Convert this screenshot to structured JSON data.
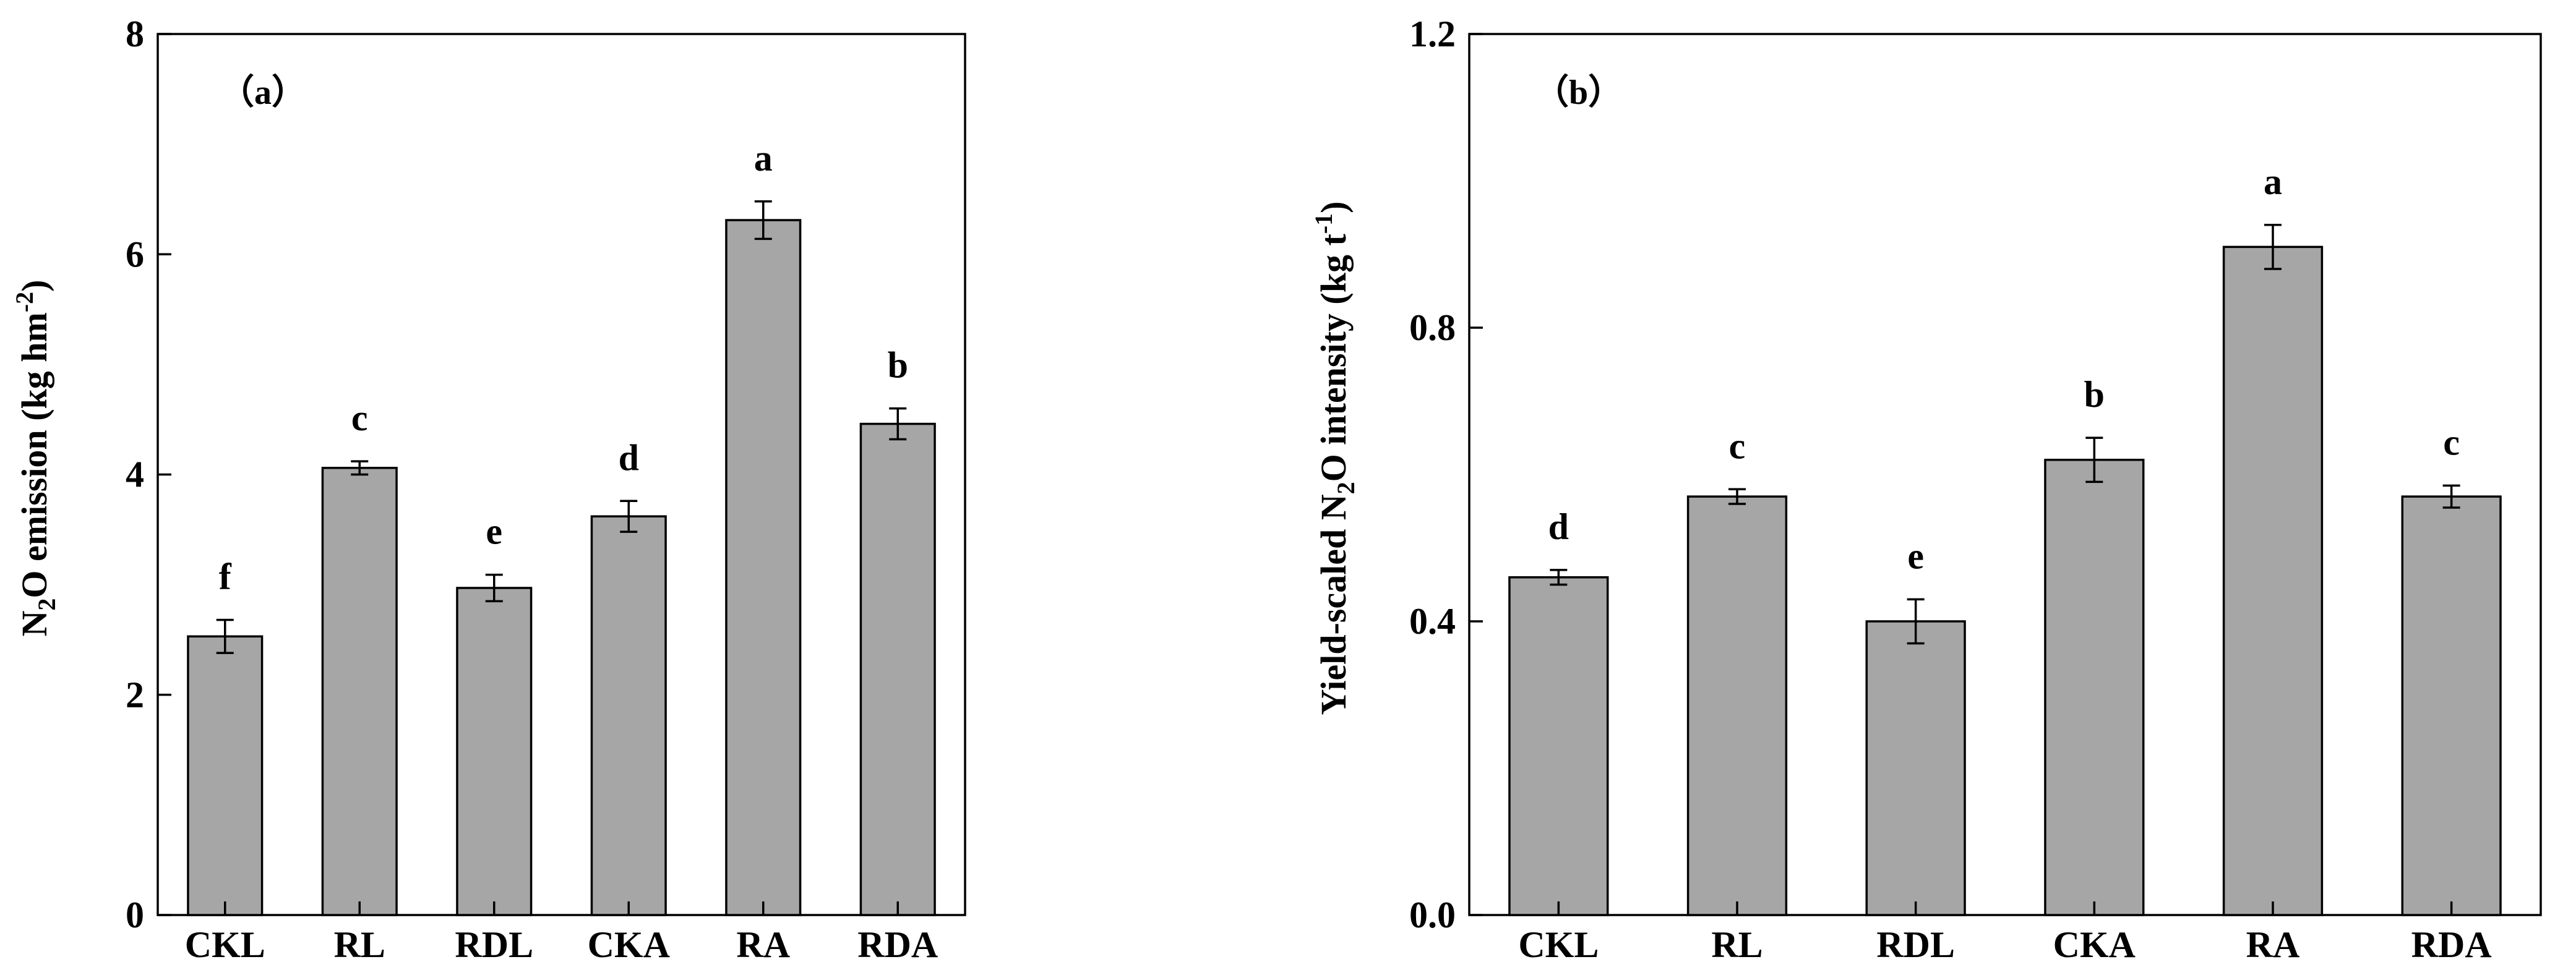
{
  "chart_data": [
    {
      "type": "bar",
      "panel_label": "（a）",
      "categories": [
        "CKL",
        "RL",
        "RDL",
        "CKA",
        "RA",
        "RDA"
      ],
      "values": [
        2.53,
        4.06,
        2.97,
        3.62,
        6.31,
        4.46
      ],
      "errors": [
        0.15,
        0.06,
        0.12,
        0.14,
        0.17,
        0.14
      ],
      "significance": [
        "f",
        "c",
        "e",
        "d",
        "a",
        "b"
      ],
      "ylabel": {
        "prefix": "N",
        "sub": "2",
        "mid": "O emission (kg hm",
        "sup": "-2",
        "suffix": ")"
      },
      "ylim": [
        0,
        8
      ],
      "yticks": [
        0,
        2,
        4,
        6,
        8
      ],
      "ytick_labels": [
        "0",
        "2",
        "4",
        "6",
        "8"
      ],
      "bar_color": "#a6a6a6"
    },
    {
      "type": "bar",
      "panel_label": "（b）",
      "categories": [
        "CKL",
        "RL",
        "RDL",
        "CKA",
        "RA",
        "RDA"
      ],
      "values": [
        0.46,
        0.57,
        0.4,
        0.62,
        0.91,
        0.57
      ],
      "errors": [
        0.01,
        0.01,
        0.03,
        0.03,
        0.03,
        0.015
      ],
      "significance": [
        "d",
        "c",
        "e",
        "b",
        "a",
        "c"
      ],
      "ylabel": {
        "prefix": "Yield-scaled N",
        "sub": "2",
        "mid": "O intensity (kg t",
        "sup": "-1",
        "suffix": ")"
      },
      "ylim": [
        0,
        1.2
      ],
      "yticks": [
        0,
        0.4,
        0.8,
        1.2
      ],
      "ytick_labels": [
        "0.0",
        "0.4",
        "0.8",
        "1.2"
      ],
      "bar_color": "#a6a6a6"
    }
  ]
}
